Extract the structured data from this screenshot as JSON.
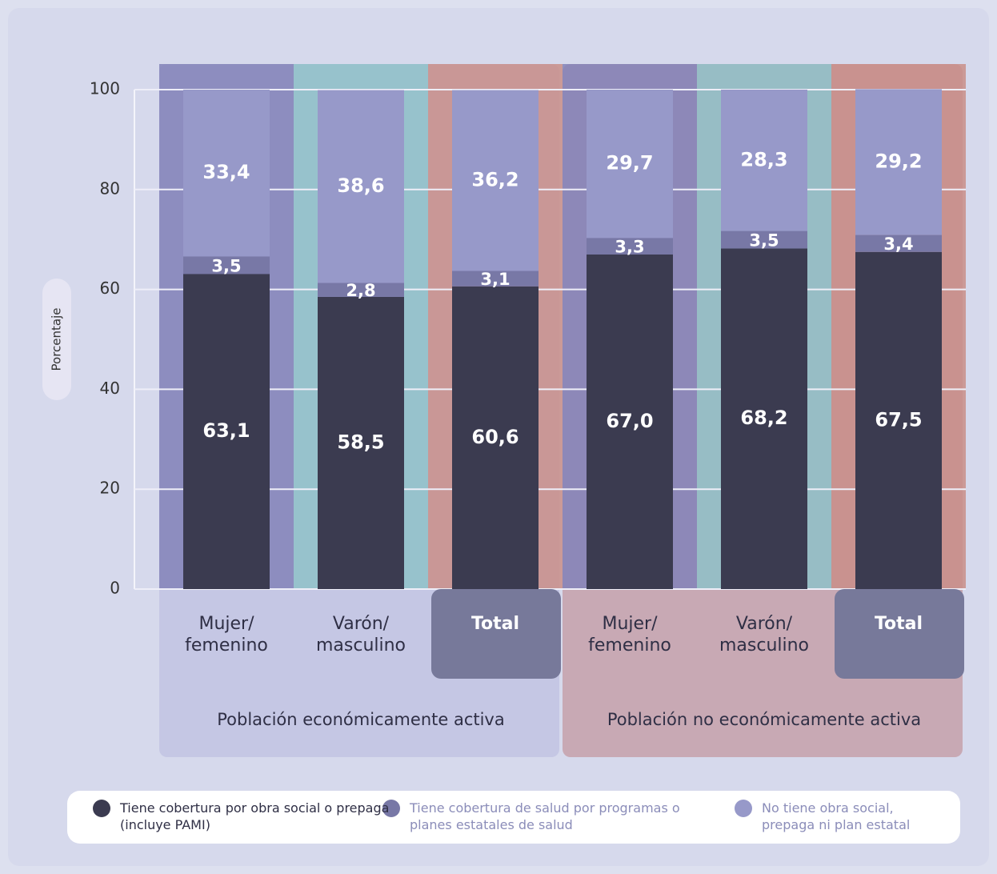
{
  "chart_data": {
    "type": "stacked_bar",
    "y_label": "Porcentaje",
    "categories": [
      "Mujer/\nfemenino",
      "Varón/\nmasculino",
      "Total",
      "Mujer/\nfemenino",
      "Varón/\nmasculino",
      "Total"
    ],
    "group_labels": [
      "Población económicamente activa",
      "Población no económicamente activa"
    ],
    "series": [
      {
        "name": "Tiene cobertura por obra social o prepaga (incluye PAMI)",
        "color": "#3b3b50",
        "values": [
          63.1,
          58.5,
          60.6,
          67.0,
          68.2,
          67.5
        ],
        "value_labels": [
          "63,1",
          "58,5",
          "60,6",
          "67,0",
          "68,2",
          "67,5"
        ]
      },
      {
        "name": "Tiene cobertura de salud por programas o planes estatales de salud",
        "color": "#7878a6",
        "values": [
          3.5,
          2.8,
          3.1,
          3.3,
          3.5,
          3.4
        ],
        "value_labels": [
          "3,5",
          "2,8",
          "3,1",
          "3,3",
          "3,5",
          "3,4"
        ]
      },
      {
        "name": "No tiene obra social, prepaga ni plan estatal",
        "color": "#9799c9",
        "values": [
          33.4,
          38.6,
          36.2,
          29.7,
          28.3,
          29.2
        ],
        "value_labels": [
          "33,4",
          "38,6",
          "36,2",
          "29,7",
          "28,3",
          "29,2"
        ]
      }
    ],
    "ylim": [
      0,
      100
    ],
    "yticks": [
      0,
      20,
      40,
      60,
      80,
      100
    ],
    "grid": true
  }
}
